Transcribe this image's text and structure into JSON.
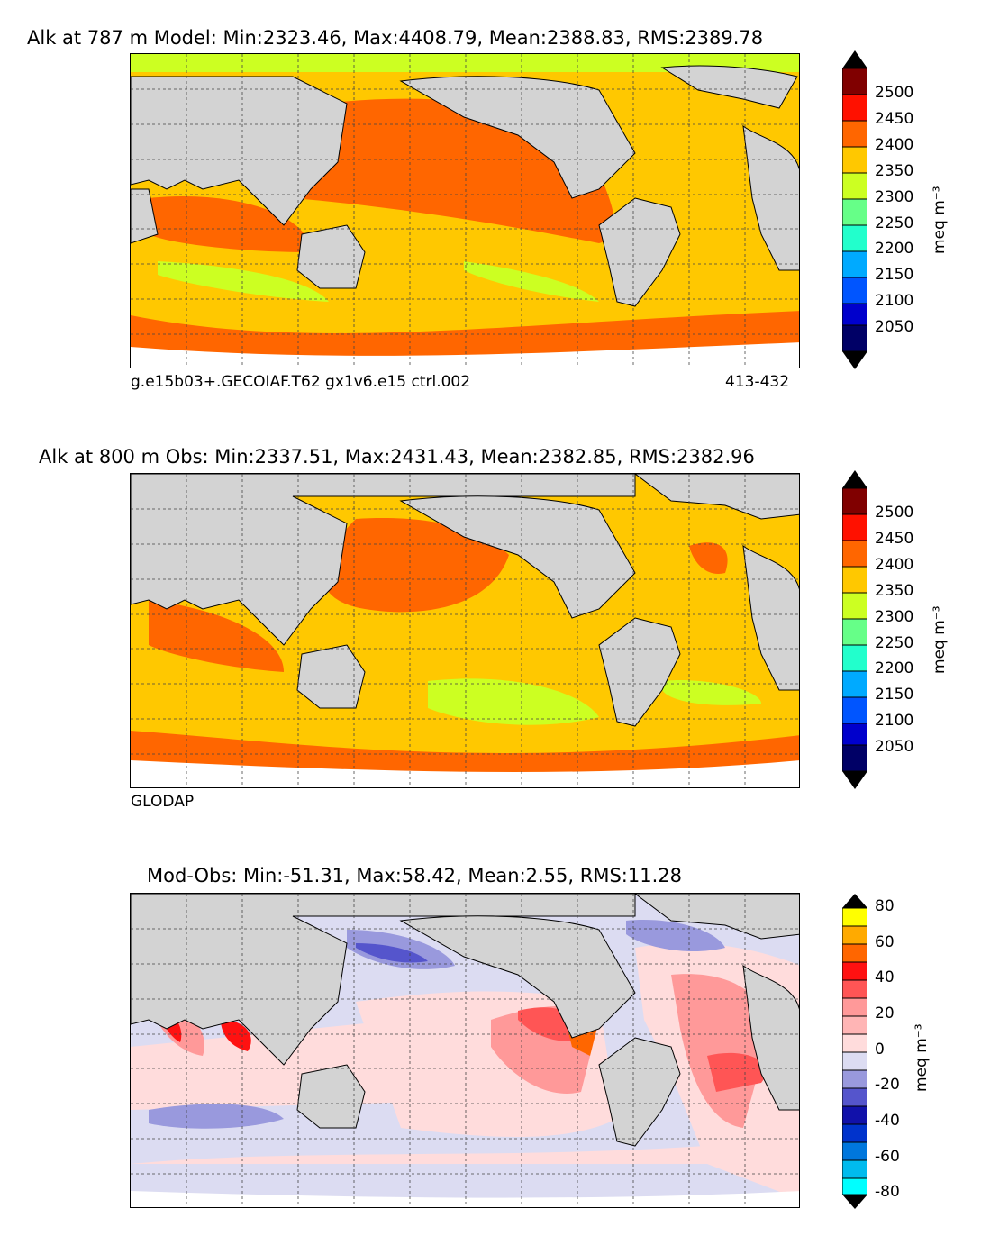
{
  "panels": [
    {
      "title": "Alk at 787 m Model: Min:2323.46, Max:4408.79, Mean:2388.83, RMS:2389.78",
      "caption_left": "g.e15b03+.GECOIAF.T62 gx1v6.e15 ctrl.002",
      "caption_right": "413-432",
      "colorbar_unit": "meq m⁻³",
      "colorbar_ticks": [
        "2500",
        "2450",
        "2400",
        "2350",
        "2300",
        "2250",
        "2200",
        "2150",
        "2100",
        "2050"
      ]
    },
    {
      "title": "Alk at 800 m Obs: Min:2337.51, Max:2431.43, Mean:2382.85, RMS:2382.96",
      "caption_left": "GLODAP",
      "caption_right": "",
      "colorbar_unit": "meq m⁻³",
      "colorbar_ticks": [
        "2500",
        "2450",
        "2400",
        "2350",
        "2300",
        "2250",
        "2200",
        "2150",
        "2100",
        "2050"
      ]
    },
    {
      "title": "Mod-Obs: Min:-51.31, Max:58.42, Mean:2.55, RMS:11.28",
      "caption_left": "",
      "caption_right": "",
      "colorbar_unit": "meq m⁻³",
      "colorbar_ticks": [
        "80",
        "60",
        "40",
        "20",
        "0",
        "-20",
        "-40",
        "-60",
        "-80"
      ]
    }
  ],
  "colors": {
    "land": "#d3d3d3",
    "alk_scale": [
      "#000066",
      "#0000cc",
      "#0055ff",
      "#00aaff",
      "#22ffcc",
      "#66ff88",
      "#ccff22",
      "#ffc800",
      "#ff6600",
      "#ff1100",
      "#800000"
    ],
    "diff_scale": [
      "#00ffff",
      "#00bbee",
      "#0077dd",
      "#0033cc",
      "#1111aa",
      "#5555cc",
      "#9999dd",
      "#dcdcf2",
      "#ffdcdc",
      "#ff9999",
      "#ff5555",
      "#ff1111",
      "#ff6600",
      "#ffaa00",
      "#ffff00"
    ]
  }
}
